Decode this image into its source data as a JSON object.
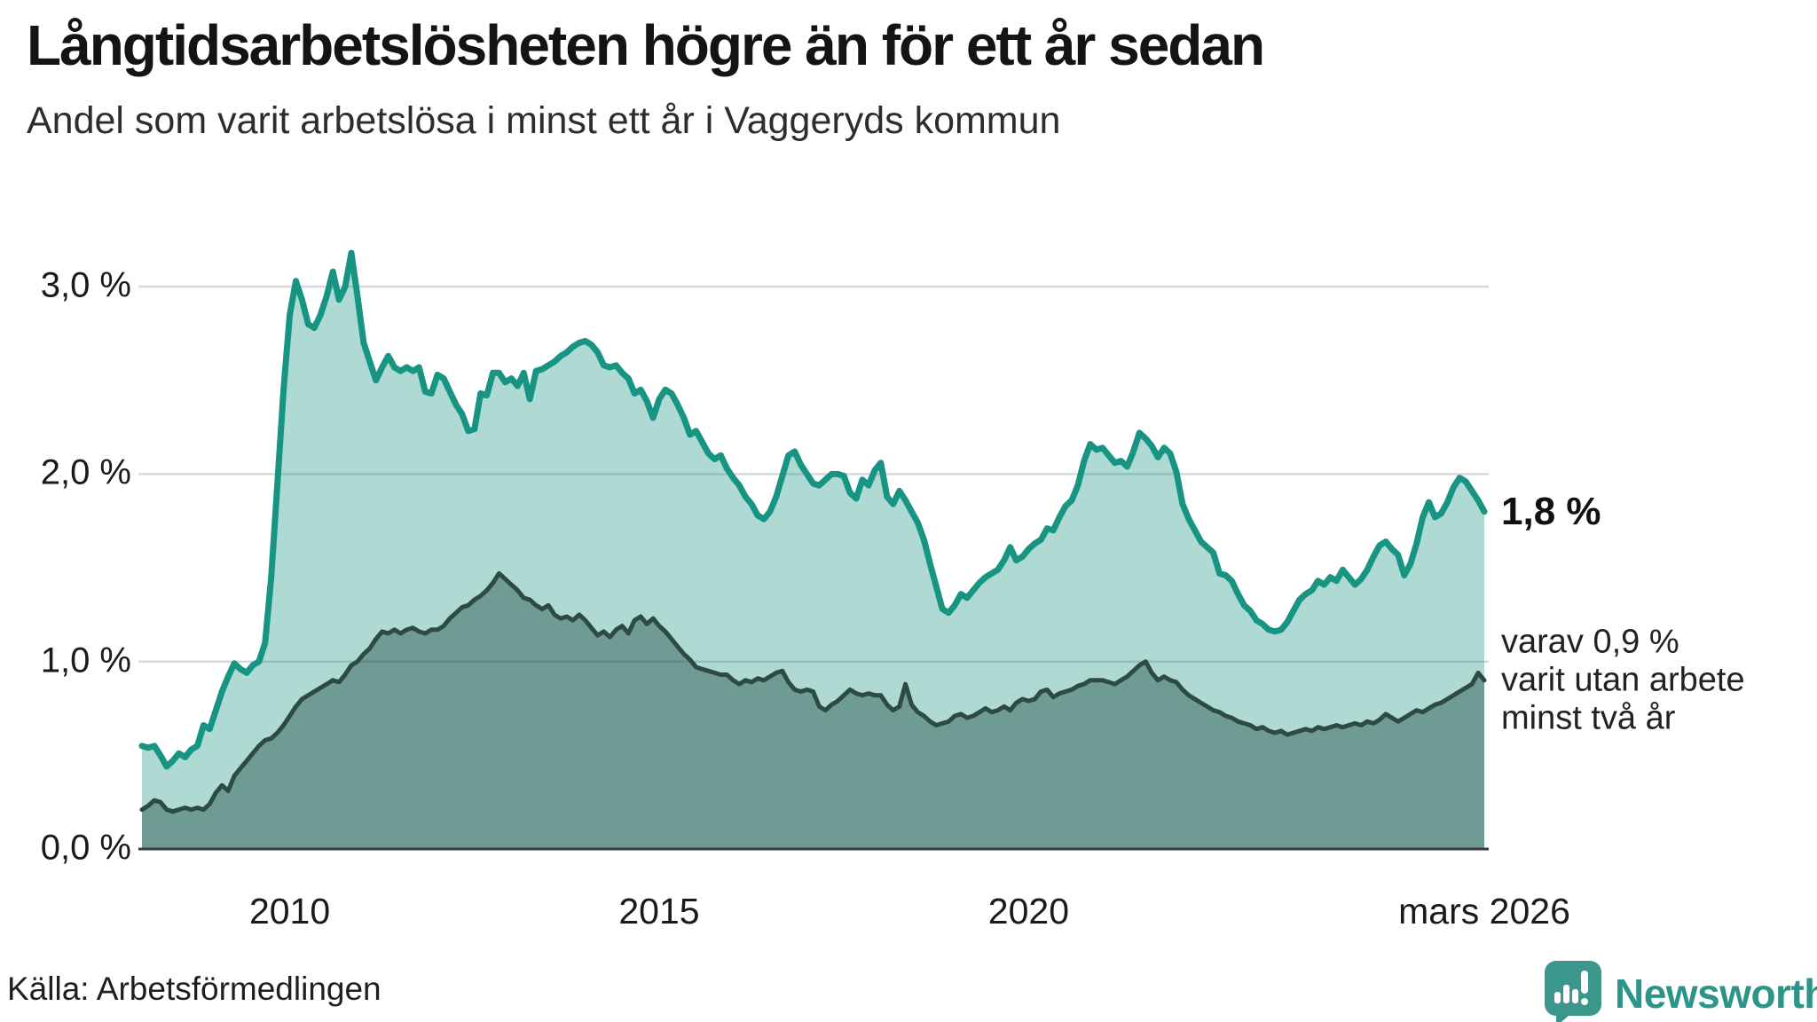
{
  "header": {
    "title": "Långtidsarbetslösheten högre än för ett år sedan",
    "subtitle": "Andel som varit arbetslösa i minst ett år i Vaggeryds kommun"
  },
  "footer": {
    "source": "Källa: Arbetsförmedlingen",
    "brand": "Newsworthy",
    "brand_color": "#2d948a",
    "logo_icon": "speech-bubble-bar-chart-icon"
  },
  "chart_data": {
    "type": "area",
    "title": "Långtidsarbetslösheten högre än för ett år sedan",
    "subtitle": "Andel som varit arbetslösa i minst ett år i Vaggeryds kommun",
    "unit": "%",
    "x_start_year": 2008,
    "x_interval": "monthly",
    "x_end_label": "mars 2026",
    "ylim": [
      0,
      3.3
    ],
    "grid": true,
    "x_ticks": [
      {
        "value": 2010.0,
        "label": "2010"
      },
      {
        "value": 2015.0,
        "label": "2015"
      },
      {
        "value": 2020.0,
        "label": "2020"
      },
      {
        "value": 2026.167,
        "label": "mars 2026"
      }
    ],
    "y_ticks": [
      {
        "value": 3.0,
        "label": "3,0 %"
      },
      {
        "value": 2.0,
        "label": "2,0 %"
      },
      {
        "value": 1.0,
        "label": "1,0 %"
      },
      {
        "value": 0.0,
        "label": "0,0 %"
      }
    ],
    "annotations": {
      "end_label": "1,8 %",
      "end_value": 1.8,
      "note_lines": [
        "varav 0,9 %",
        "varit utan arbete",
        "minst två år"
      ],
      "note_value": 0.9
    },
    "series": [
      {
        "name": "Arbetslösa minst ett år",
        "line_color": "#179482",
        "fill_color": "rgba(24,148,130,0.35)",
        "line_width": 7,
        "end_value_label": "1,8 %",
        "values": [
          0.55,
          0.54,
          0.55,
          0.5,
          0.44,
          0.47,
          0.51,
          0.49,
          0.53,
          0.55,
          0.66,
          0.64,
          0.74,
          0.84,
          0.92,
          0.99,
          0.96,
          0.94,
          0.98,
          1.0,
          1.1,
          1.45,
          1.95,
          2.45,
          2.85,
          3.03,
          2.93,
          2.8,
          2.78,
          2.85,
          2.95,
          3.08,
          2.93,
          3.0,
          3.18,
          2.95,
          2.7,
          2.6,
          2.5,
          2.57,
          2.63,
          2.57,
          2.55,
          2.57,
          2.55,
          2.57,
          2.44,
          2.43,
          2.53,
          2.51,
          2.44,
          2.37,
          2.32,
          2.23,
          2.24,
          2.43,
          2.42,
          2.54,
          2.54,
          2.49,
          2.51,
          2.47,
          2.54,
          2.4,
          2.55,
          2.56,
          2.58,
          2.6,
          2.63,
          2.65,
          2.68,
          2.7,
          2.71,
          2.69,
          2.65,
          2.58,
          2.57,
          2.58,
          2.54,
          2.51,
          2.43,
          2.45,
          2.39,
          2.3,
          2.4,
          2.45,
          2.43,
          2.37,
          2.3,
          2.21,
          2.23,
          2.17,
          2.11,
          2.08,
          2.1,
          2.03,
          1.98,
          1.94,
          1.88,
          1.84,
          1.78,
          1.76,
          1.8,
          1.88,
          1.99,
          2.1,
          2.12,
          2.05,
          2.0,
          1.95,
          1.94,
          1.97,
          2.0,
          2.0,
          1.99,
          1.9,
          1.87,
          1.97,
          1.94,
          2.02,
          2.06,
          1.88,
          1.84,
          1.91,
          1.86,
          1.8,
          1.74,
          1.65,
          1.52,
          1.4,
          1.28,
          1.26,
          1.3,
          1.36,
          1.34,
          1.38,
          1.42,
          1.45,
          1.47,
          1.49,
          1.54,
          1.61,
          1.54,
          1.56,
          1.6,
          1.63,
          1.65,
          1.71,
          1.7,
          1.77,
          1.83,
          1.86,
          1.94,
          2.07,
          2.16,
          2.13,
          2.14,
          2.1,
          2.06,
          2.07,
          2.04,
          2.12,
          2.22,
          2.19,
          2.15,
          2.09,
          2.14,
          2.11,
          2.01,
          1.84,
          1.76,
          1.7,
          1.64,
          1.61,
          1.58,
          1.47,
          1.46,
          1.43,
          1.36,
          1.3,
          1.27,
          1.22,
          1.2,
          1.17,
          1.16,
          1.17,
          1.21,
          1.27,
          1.33,
          1.36,
          1.38,
          1.43,
          1.41,
          1.45,
          1.43,
          1.49,
          1.45,
          1.41,
          1.44,
          1.49,
          1.56,
          1.62,
          1.64,
          1.6,
          1.57,
          1.46,
          1.52,
          1.63,
          1.77,
          1.85,
          1.77,
          1.79,
          1.85,
          1.93,
          1.98,
          1.96,
          1.91,
          1.86,
          1.8
        ]
      },
      {
        "name": "varav arbetslösa minst två år",
        "line_color": "#2e4a45",
        "fill_color": "rgba(16,61,56,0.40)",
        "line_width": 5,
        "end_value_label": "0,9 %",
        "values": [
          0.21,
          0.23,
          0.26,
          0.25,
          0.21,
          0.2,
          0.21,
          0.22,
          0.21,
          0.22,
          0.21,
          0.24,
          0.3,
          0.34,
          0.31,
          0.39,
          0.43,
          0.47,
          0.51,
          0.55,
          0.58,
          0.59,
          0.62,
          0.66,
          0.71,
          0.76,
          0.8,
          0.82,
          0.84,
          0.86,
          0.88,
          0.9,
          0.89,
          0.93,
          0.98,
          1.0,
          1.04,
          1.07,
          1.12,
          1.16,
          1.15,
          1.17,
          1.15,
          1.17,
          1.18,
          1.16,
          1.15,
          1.17,
          1.17,
          1.19,
          1.23,
          1.26,
          1.29,
          1.3,
          1.33,
          1.35,
          1.38,
          1.42,
          1.47,
          1.44,
          1.41,
          1.38,
          1.34,
          1.33,
          1.3,
          1.28,
          1.3,
          1.25,
          1.23,
          1.24,
          1.22,
          1.25,
          1.22,
          1.18,
          1.14,
          1.16,
          1.13,
          1.17,
          1.19,
          1.15,
          1.22,
          1.24,
          1.2,
          1.23,
          1.19,
          1.16,
          1.12,
          1.08,
          1.04,
          1.01,
          0.97,
          0.96,
          0.95,
          0.94,
          0.93,
          0.93,
          0.9,
          0.88,
          0.9,
          0.89,
          0.91,
          0.9,
          0.92,
          0.94,
          0.95,
          0.89,
          0.85,
          0.84,
          0.85,
          0.84,
          0.76,
          0.74,
          0.77,
          0.79,
          0.82,
          0.85,
          0.83,
          0.82,
          0.83,
          0.82,
          0.82,
          0.77,
          0.74,
          0.76,
          0.88,
          0.77,
          0.73,
          0.71,
          0.68,
          0.66,
          0.67,
          0.68,
          0.71,
          0.72,
          0.7,
          0.71,
          0.73,
          0.75,
          0.73,
          0.74,
          0.76,
          0.74,
          0.78,
          0.8,
          0.79,
          0.8,
          0.84,
          0.85,
          0.81,
          0.83,
          0.84,
          0.85,
          0.87,
          0.88,
          0.9,
          0.9,
          0.9,
          0.89,
          0.88,
          0.9,
          0.92,
          0.95,
          0.98,
          1.0,
          0.94,
          0.9,
          0.92,
          0.9,
          0.89,
          0.85,
          0.82,
          0.8,
          0.78,
          0.76,
          0.74,
          0.73,
          0.71,
          0.7,
          0.68,
          0.67,
          0.66,
          0.64,
          0.65,
          0.63,
          0.62,
          0.63,
          0.61,
          0.62,
          0.63,
          0.64,
          0.63,
          0.65,
          0.64,
          0.65,
          0.66,
          0.65,
          0.66,
          0.67,
          0.66,
          0.68,
          0.67,
          0.69,
          0.72,
          0.7,
          0.68,
          0.7,
          0.72,
          0.74,
          0.73,
          0.75,
          0.77,
          0.78,
          0.8,
          0.82,
          0.84,
          0.86,
          0.88,
          0.94,
          0.9
        ]
      }
    ],
    "layout_hints": {
      "gridline_color": "#d9d9de",
      "axis_line_color": "#3a3a3a",
      "legend": "none",
      "value_labels_position": "right-of-last-point"
    }
  }
}
